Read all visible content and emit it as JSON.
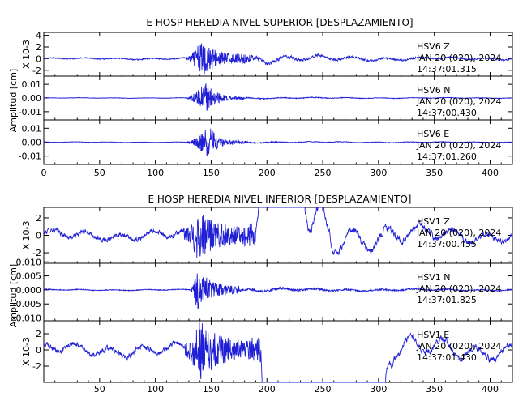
{
  "chart_data": [
    {
      "type": "line",
      "title": "E HOSP HEREDIA NIVEL SUPERIOR [DESPLAZAMIENTO]",
      "ylabel": "Amplitud [cm]",
      "xlim": [
        0,
        420
      ],
      "x_ticks": [
        0,
        50,
        100,
        150,
        200,
        250,
        300,
        350,
        400
      ],
      "x_tick_labels": [
        "0",
        "50",
        "100",
        "150",
        "200",
        "250",
        "300",
        "350",
        "400"
      ],
      "line_color": "#1f1fd6",
      "channels": [
        {
          "station": "HSV6",
          "component": "Z",
          "date_line": "JAN 20 (020), 2024",
          "time_line": "14:37:01.315",
          "scale_label": "X 10-3",
          "ylim": [
            -3,
            4.5
          ],
          "y_ticks": [
            -2,
            0,
            2,
            4
          ],
          "y_tick_labels": [
            "-2",
            "0",
            "2",
            "4"
          ],
          "event_start": 128,
          "event_peak": 142,
          "event_end": 175,
          "noise_level": 0.25,
          "peak_amplitude": 3.5,
          "coda_level": 0.6
        },
        {
          "station": "HSV6",
          "component": "N",
          "date_line": "JAN 20 (020), 2024",
          "time_line": "14:37:00.430",
          "scale_label": "",
          "ylim": [
            -0.016,
            0.016
          ],
          "y_ticks": [
            -0.01,
            0.0,
            0.01
          ],
          "y_tick_labels": [
            "-0.01",
            "0.00",
            "0.01"
          ],
          "event_start": 128,
          "event_peak": 145,
          "event_end": 170,
          "noise_level": 0.0004,
          "peak_amplitude": 0.012,
          "coda_level": 0.0008
        },
        {
          "station": "HSV6",
          "component": "E",
          "date_line": "JAN 20 (020), 2024",
          "time_line": "14:37:01.260",
          "scale_label": "",
          "ylim": [
            -0.016,
            0.016
          ],
          "y_ticks": [
            -0.01,
            0.0,
            0.01
          ],
          "y_tick_labels": [
            "-0.01",
            "0.00",
            "0.01"
          ],
          "event_start": 128,
          "event_peak": 148,
          "event_end": 172,
          "noise_level": 0.0004,
          "peak_amplitude": 0.012,
          "coda_level": 0.0008
        }
      ]
    },
    {
      "type": "line",
      "title": "E HOSP HEREDIA NIVEL INFERIOR [DESPLAZAMIENTO]",
      "ylabel": "Amplitud [cm]",
      "xlim": [
        0,
        420
      ],
      "x_ticks": [
        0,
        50,
        100,
        150,
        200,
        250,
        300,
        350,
        400
      ],
      "x_tick_labels": [
        "",
        "50",
        "100",
        "150",
        "200",
        "250",
        "300",
        "350",
        "400"
      ],
      "line_color": "#1f1fd6",
      "channels": [
        {
          "station": "HSV1",
          "component": "Z",
          "date_line": "JAN 20 (020), 2024",
          "time_line": "14:37:00.435",
          "scale_label": "X 10-3",
          "ylim": [
            -3.2,
            3.2
          ],
          "y_ticks": [
            -2,
            0,
            2
          ],
          "y_tick_labels": [
            "-2",
            "0",
            "2"
          ],
          "event_start": 126,
          "event_peak": 138,
          "event_end": 180,
          "noise_level": 0.6,
          "peak_amplitude": 3.0,
          "coda_level": 0.9
        },
        {
          "station": "HSV1",
          "component": "N",
          "date_line": "JAN 20 (020), 2024",
          "time_line": "14:37:01.825",
          "scale_label": "",
          "ylim": [
            -0.011,
            0.0095
          ],
          "y_ticks": [
            -0.01,
            -0.005,
            0.0,
            0.005,
            0.01
          ],
          "y_tick_labels": [
            "-0.010",
            "-0.005",
            "0.000",
            "0.005",
            "0.010"
          ],
          "event_start": 132,
          "event_peak": 138,
          "event_end": 165,
          "noise_level": 0.0004,
          "peak_amplitude": 0.009,
          "coda_level": 0.0012
        },
        {
          "station": "HSV1",
          "component": "E",
          "date_line": "JAN 20 (020), 2024",
          "time_line": "14:37:01.430",
          "scale_label": "X 10-3",
          "ylim": [
            -4,
            3.6
          ],
          "y_ticks": [
            -2,
            0,
            2
          ],
          "y_tick_labels": [
            "-2",
            "0",
            "2"
          ],
          "event_start": 126,
          "event_peak": 140,
          "event_end": 185,
          "noise_level": 0.7,
          "peak_amplitude": 3.8,
          "coda_level": 1.0
        }
      ]
    }
  ]
}
